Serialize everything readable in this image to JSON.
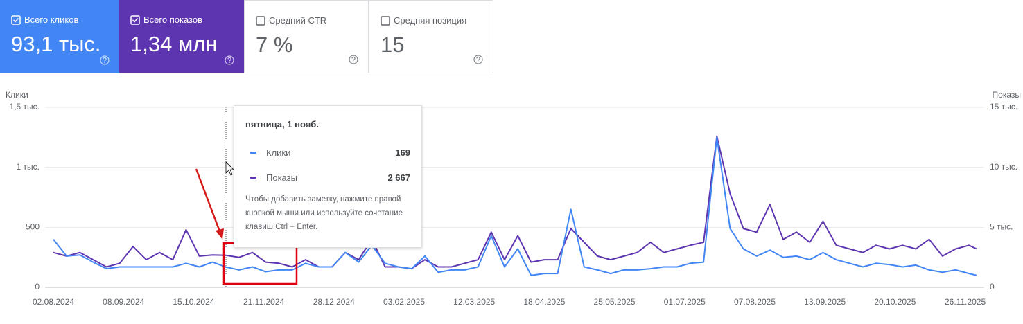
{
  "cards": [
    {
      "label": "Всего кликов",
      "value": "93,1 тыс.",
      "checked": true,
      "color": "#4285f4"
    },
    {
      "label": "Всего показов",
      "value": "1,34 млн",
      "checked": true,
      "color": "#5e35b1"
    },
    {
      "label": "Средний CTR",
      "value": "7 %",
      "checked": false
    },
    {
      "label": "Средняя позиция",
      "value": "15",
      "checked": false
    }
  ],
  "chart_data": {
    "type": "line",
    "x": [
      "02.08.2024",
      "09.08.2024",
      "16.08.2024",
      "23.08.2024",
      "30.08.2024",
      "06.09.2024",
      "13.09.2024",
      "20.09.2024",
      "27.09.2024",
      "04.10.2024",
      "11.10.2024",
      "18.10.2024",
      "25.10.2024",
      "01.11.2024",
      "08.11.2024",
      "15.11.2024",
      "22.11.2024",
      "29.11.2024",
      "06.12.2024",
      "13.12.2024",
      "20.12.2024",
      "27.12.2024",
      "03.01.2025",
      "10.01.2025",
      "17.01.2025",
      "24.01.2025",
      "31.01.2025",
      "07.02.2025",
      "14.02.2025",
      "21.02.2025",
      "28.02.2025",
      "07.03.2025",
      "14.03.2025",
      "21.03.2025",
      "28.03.2025",
      "04.04.2025",
      "11.04.2025",
      "18.04.2025",
      "25.04.2025",
      "02.05.2025",
      "09.05.2025",
      "16.05.2025",
      "23.05.2025",
      "30.05.2025",
      "06.06.2025",
      "13.06.2025",
      "20.06.2025",
      "27.06.2025",
      "04.07.2025",
      "11.07.2025",
      "18.07.2025",
      "25.07.2025",
      "01.08.2025",
      "08.08.2025",
      "15.08.2025",
      "22.08.2025",
      "29.08.2025",
      "05.09.2025",
      "12.09.2025",
      "19.09.2025",
      "26.09.2025",
      "03.10.2025",
      "10.10.2025",
      "17.10.2025",
      "24.10.2025",
      "31.10.2025",
      "07.11.2025",
      "14.11.2025",
      "21.11.2025",
      "28.11.2025",
      "02.12.2025"
    ],
    "series": [
      {
        "name": "Клики",
        "color": "#4285f4",
        "axis": "y",
        "values": [
          400,
          260,
          270,
          210,
          155,
          170,
          170,
          170,
          170,
          170,
          200,
          170,
          210,
          169,
          145,
          170,
          130,
          145,
          145,
          200,
          170,
          170,
          290,
          210,
          350,
          200,
          170,
          155,
          260,
          125,
          145,
          145,
          170,
          430,
          170,
          320,
          100,
          115,
          115,
          650,
          170,
          145,
          115,
          145,
          145,
          155,
          170,
          170,
          200,
          210,
          1250,
          490,
          320,
          260,
          310,
          250,
          260,
          230,
          290,
          230,
          200,
          170,
          200,
          190,
          170,
          185,
          145,
          125,
          145,
          115,
          100
        ]
      },
      {
        "name": "Показы",
        "color": "#5e35b1",
        "axis": "y2",
        "values": [
          2900,
          2600,
          2900,
          2300,
          1700,
          2000,
          3400,
          2300,
          2900,
          2300,
          4800,
          2600,
          2700,
          2667,
          2500,
          2900,
          2100,
          2000,
          1700,
          2300,
          1700,
          1700,
          2900,
          2300,
          4000,
          1700,
          1700,
          1550,
          2300,
          1700,
          1700,
          2000,
          2300,
          4600,
          2300,
          4300,
          2100,
          2300,
          2300,
          4900,
          3750,
          2600,
          2300,
          2600,
          2900,
          3750,
          2900,
          3200,
          3500,
          3750,
          12600,
          7800,
          4900,
          4600,
          6900,
          4000,
          4600,
          3750,
          5500,
          3500,
          3200,
          2900,
          3500,
          3200,
          3500,
          3200,
          4000,
          2600,
          3200,
          3500,
          3200
        ]
      }
    ],
    "xticks": [
      "02.08.2024",
      "08.09.2024",
      "15.10.2024",
      "21.11.2024",
      "28.12.2024",
      "03.02.2025",
      "12.03.2025",
      "18.04.2025",
      "25.05.2025",
      "01.07.2025",
      "07.08.2025",
      "13.09.2025",
      "20.10.2025",
      "26.11.2025"
    ],
    "ylim": [
      0,
      1500
    ],
    "yticks": [
      0,
      500,
      {
        "value": 1000,
        "label": "1 тыс."
      },
      {
        "value": 1500,
        "label": "1,5 тыс."
      }
    ],
    "y2lim": [
      0,
      15000
    ],
    "y2ticks": [
      0,
      {
        "value": 5000,
        "label": "5 тыс."
      },
      {
        "value": 10000,
        "label": "10 тыс."
      },
      {
        "value": 15000,
        "label": "15 тыс."
      }
    ],
    "grid": true
  },
  "tooltip": {
    "title": "пятница, 1 нояб.",
    "values": [
      169,
      2667
    ],
    "value_labels": [
      "169",
      "2 667"
    ],
    "note": "Чтобы добавить заметку, нажмите правой кнопкой мыши или используйте сочетание клавиш Ctrl + Enter."
  }
}
